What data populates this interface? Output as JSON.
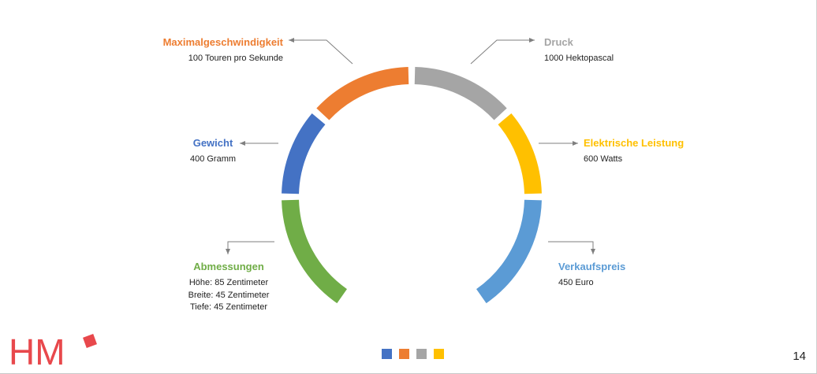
{
  "colors": {
    "orange": "#ED7D31",
    "gray": "#A5A5A5",
    "blue": "#4472C4",
    "yellow": "#FFC000",
    "green": "#70AD47",
    "lightblue": "#5B9BD5",
    "logo_red": "#E8484C",
    "arrow": "#7F7F7F"
  },
  "segments": [
    {
      "id": "maximalgeschwindigkeit",
      "title": "Maximalgeschwindigkeit",
      "color": "#ED7D31",
      "lines": [
        "100 Touren pro Sekunde"
      ]
    },
    {
      "id": "druck",
      "title": "Druck",
      "color": "#A5A5A5",
      "lines": [
        "1000 Hektopascal"
      ]
    },
    {
      "id": "gewicht",
      "title": "Gewicht",
      "color": "#4472C4",
      "lines": [
        "400 Gramm"
      ]
    },
    {
      "id": "elektrische-leistung",
      "title": "Elektrische Leistung",
      "color": "#FFC000",
      "lines": [
        "600 Watts"
      ]
    },
    {
      "id": "abmessungen",
      "title": "Abmessungen",
      "color": "#70AD47",
      "lines": [
        "Höhe: 85 Zentimeter",
        "Breite: 45 Zentimeter",
        "Tiefe: 45 Zentimeter"
      ]
    },
    {
      "id": "verkaufspreis",
      "title": "Verkaufspreis",
      "color": "#5B9BD5",
      "lines": [
        "450 Euro"
      ]
    }
  ],
  "footer": {
    "logo_text": "HM",
    "page_number": "14",
    "squares": [
      "#4472C4",
      "#ED7D31",
      "#A5A5A5",
      "#FFC000"
    ]
  }
}
